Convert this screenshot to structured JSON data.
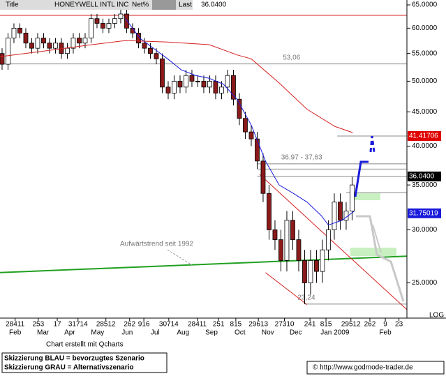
{
  "header": {
    "title_label": "Title",
    "name": "HONEYWELL INTL INC",
    "net_label": "Net%",
    "last_label": "Last",
    "last": "36.0400"
  },
  "chart_data": {
    "type": "candlestick",
    "log_scale": true,
    "xlim": [
      -0.35,
      68.24
    ],
    "ylim": [
      22.2,
      66.1
    ],
    "yticks": [
      {
        "value": 65,
        "label": "65.0000"
      },
      {
        "value": 60,
        "label": "60.0000"
      },
      {
        "value": 55,
        "label": "55.0000"
      },
      {
        "value": 50,
        "label": "50.0000"
      },
      {
        "value": 45,
        "label": "45.0000"
      },
      {
        "value": 40,
        "label": "40.0000"
      },
      {
        "value": 35,
        "label": "35.0000"
      },
      {
        "value": 30,
        "label": "30.0000"
      },
      {
        "value": 25,
        "label": "25.0000"
      }
    ],
    "xticks": [
      {
        "value": 2.2,
        "label": "28411"
      },
      {
        "value": 6.1,
        "label": "253"
      },
      {
        "value": 9.3,
        "label": "17"
      },
      {
        "value": 12.8,
        "label": "31714"
      },
      {
        "value": 17.5,
        "label": "28512"
      },
      {
        "value": 21.5,
        "label": "262"
      },
      {
        "value": 23.9,
        "label": "916"
      },
      {
        "value": 28.1,
        "label": "30714"
      },
      {
        "value": 32.9,
        "label": "28411"
      },
      {
        "value": 36.5,
        "label": "251"
      },
      {
        "value": 39.4,
        "label": "815"
      },
      {
        "value": 43.2,
        "label": "29613"
      },
      {
        "value": 47.6,
        "label": "27310"
      },
      {
        "value": 51.9,
        "label": "241"
      },
      {
        "value": 54.6,
        "label": "815"
      },
      {
        "value": 58.8,
        "label": "29512"
      },
      {
        "value": 62,
        "label": "262"
      },
      {
        "value": 64.6,
        "label": "9"
      },
      {
        "value": 66.9,
        "label": "23"
      }
    ],
    "month_labels": [
      {
        "value": 2.2,
        "label": "Feb"
      },
      {
        "value": 6.9,
        "label": "Mar"
      },
      {
        "value": 11.4,
        "label": "Apr"
      },
      {
        "value": 16.1,
        "label": "May"
      },
      {
        "value": 21.1,
        "label": "Jun"
      },
      {
        "value": 25.8,
        "label": "Jul"
      },
      {
        "value": 30.5,
        "label": "Aug"
      },
      {
        "value": 35.3,
        "label": "Sep"
      },
      {
        "value": 40.1,
        "label": "Oct"
      },
      {
        "value": 44.8,
        "label": "Nov"
      },
      {
        "value": 49.5,
        "label": "Dec"
      },
      {
        "value": 56.1,
        "label": "Jan 2009"
      },
      {
        "value": 64.6,
        "label": "Feb"
      }
    ],
    "candles": {
      "up_color": "#ffffff",
      "down_color": "#8b1a1a",
      "x": [
        0,
        1,
        2,
        3,
        4,
        5,
        6,
        7,
        8,
        9,
        10,
        11,
        12,
        13,
        14,
        15,
        16,
        17,
        18,
        19,
        20,
        21,
        22,
        23,
        24,
        25,
        26,
        27,
        28,
        29,
        30,
        31,
        32,
        33,
        34,
        35,
        36,
        37,
        38,
        39,
        40,
        41,
        42,
        43,
        44,
        45,
        46,
        47,
        48,
        49,
        50,
        51,
        52,
        53,
        54,
        55,
        56,
        57,
        58,
        59
      ],
      "open": [
        55,
        53,
        58,
        60,
        59,
        57,
        56,
        58,
        57,
        56,
        57,
        55,
        56,
        58,
        57,
        58,
        62,
        61,
        60,
        61,
        62,
        63,
        60,
        59,
        57,
        56,
        55,
        54,
        49,
        48,
        50,
        49,
        51,
        50,
        50,
        49,
        50,
        48,
        49,
        51,
        47,
        44,
        42,
        41,
        38,
        34,
        30,
        29,
        27,
        31,
        29,
        27,
        25,
        27,
        26,
        28,
        30,
        33,
        31,
        32
      ],
      "high": [
        56,
        59,
        61,
        61,
        60,
        58,
        59,
        59,
        58,
        58,
        58,
        57,
        59,
        59,
        59,
        63,
        63,
        62,
        62,
        63,
        64,
        64,
        61,
        60,
        58,
        57,
        56,
        55,
        50,
        51,
        51,
        52,
        52,
        51,
        51,
        51,
        51,
        50,
        52,
        52,
        48,
        45,
        43,
        42,
        39,
        35,
        31,
        30,
        32,
        32,
        30,
        28,
        28,
        28,
        29,
        31,
        34,
        34,
        33,
        36
      ],
      "low": [
        52,
        52,
        57,
        58,
        56,
        55,
        55,
        56,
        55,
        55,
        54,
        54,
        55,
        56,
        56,
        57,
        60,
        59,
        59,
        60,
        61,
        59,
        58,
        56,
        55,
        54,
        53,
        48,
        47,
        47,
        48,
        48,
        49,
        49,
        48,
        48,
        47,
        47,
        48,
        46,
        43,
        41,
        40,
        37,
        33,
        29,
        28,
        26,
        26,
        28,
        26,
        23.24,
        24,
        25,
        25,
        27,
        29,
        30,
        30,
        31
      ],
      "close": [
        53,
        58,
        60,
        59,
        57,
        56,
        58,
        57,
        56,
        57,
        55,
        56,
        58,
        57,
        58,
        62,
        61,
        60,
        61,
        62,
        63,
        60,
        59,
        57,
        56,
        55,
        54,
        49,
        48,
        50,
        49,
        51,
        50,
        50,
        49,
        50,
        48,
        49,
        51,
        47,
        44,
        42,
        41,
        38,
        34,
        30,
        29,
        27,
        31,
        29,
        27,
        25,
        27,
        26,
        28,
        30,
        33,
        31,
        32,
        35
      ]
    },
    "series": [
      {
        "color": "#1a1adc",
        "x": [
          20.8,
          23.2,
          25.5,
          27.9,
          30.2,
          32.6,
          34.9,
          37.3,
          39.6,
          42,
          44.4,
          46.7,
          49.1,
          51.4,
          53.8,
          55,
          57.3,
          59.4
        ],
        "values": [
          62,
          58,
          56,
          54,
          52,
          51,
          50.5,
          49.5,
          47,
          43,
          38,
          35,
          34,
          33,
          31.5,
          30.5,
          31,
          32
        ]
      },
      {
        "color": "#d42020",
        "x": [
          -0.35,
          6.7,
          13.8,
          20.8,
          27.9,
          34.9,
          39.7,
          42,
          46.7,
          51.4,
          56.1,
          59.1
        ],
        "values": [
          54.4,
          55.4,
          56.5,
          57.5,
          57.2,
          56.7,
          54.7,
          54,
          49.7,
          45.4,
          42.8,
          41.9
        ]
      }
    ],
    "trendlines": [
      {
        "color": "#20a020",
        "x": [
          -0.35,
          68.24
        ],
        "values": [
          25.9,
          27.4
        ]
      },
      {
        "color": "#d42020",
        "x": [
          43.4,
          68.24
        ],
        "values": [
          36.3,
          22.8
        ]
      },
      {
        "color": "#d42020",
        "x": [
          44.4,
          51.4
        ],
        "values": [
          25.9,
          23.2
        ]
      },
      {
        "color": "#d42020",
        "x": [
          -0.35,
          68.24
        ],
        "values": [
          62.7,
          62.7
        ]
      }
    ],
    "levels": [
      {
        "value": 53.06,
        "from": -0.35,
        "label": "53,06",
        "label_at": 48.8
      },
      {
        "value": 37.63,
        "from": 43,
        "label": "36,97 - 37,63",
        "label_at": 50.5
      },
      {
        "value": 36.97,
        "from": 43
      },
      {
        "value": 36.04,
        "from": 43
      },
      {
        "value": 34.1,
        "from": 58
      },
      {
        "value": 41.41706,
        "from": 56.5
      },
      {
        "value": 23.24,
        "from": 51,
        "label": "23,24",
        "label_at": 51.3
      }
    ],
    "price_labels": [
      {
        "value": 41.41706,
        "label": "41.41706",
        "color": "#e00000"
      },
      {
        "value": 36.04,
        "label": "36.0400",
        "color": "#000000"
      },
      {
        "value": 31.75019,
        "label": "31.75019",
        "color": "#1a1adc"
      }
    ],
    "annotation": "Aufwärtstrend seit 1992",
    "scale_label": "LOG"
  },
  "footer": {
    "credit": "Chart erstellt mit Qcharts",
    "note_blue": "Skizzierung BLAU = bevorzugtes Szenario",
    "note_grey": "Skizzierung GRAU = Alternativszenario",
    "copyright": "© http://www.godmode-trader.de"
  }
}
